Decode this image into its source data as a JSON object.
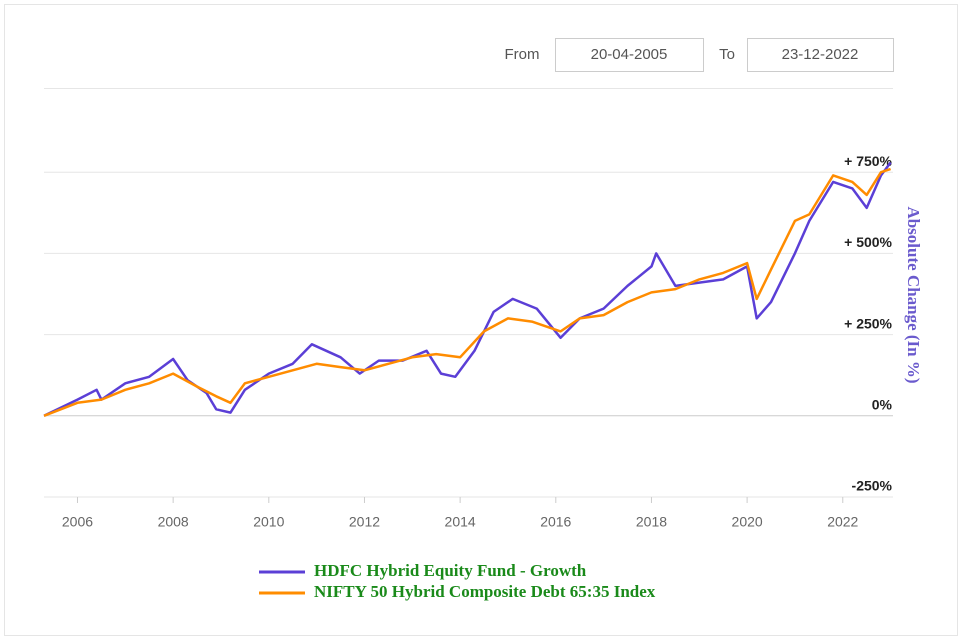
{
  "date_range": {
    "from_label": "From",
    "from": "20-04-2005",
    "to_label": "To",
    "to": "23-12-2022"
  },
  "chart_data": {
    "type": "line",
    "y_axis_label": "Absolute Change (In %)",
    "xlim": [
      2005.3,
      2023.05
    ],
    "xticks": [
      2006,
      2008,
      2010,
      2012,
      2014,
      2016,
      2018,
      2020,
      2022
    ],
    "ylim": [
      -250,
      1000
    ],
    "yticks": [
      {
        "value": -250,
        "label": "-250%"
      },
      {
        "value": 0,
        "label": "0%"
      },
      {
        "value": 250,
        "label": "+ 250%"
      },
      {
        "value": 500,
        "label": "+ 500%"
      },
      {
        "value": 750,
        "label": "+ 750%"
      }
    ],
    "grid": true,
    "legend": "bottom",
    "series": [
      {
        "name": "HDFC Hybrid Equity Fund - Growth",
        "color": "#5b3fd6",
        "x": [
          2005.3,
          2006,
          2006.4,
          2006.5,
          2007,
          2007.5,
          2008,
          2008.3,
          2008.7,
          2008.9,
          2009.2,
          2009.5,
          2010,
          2010.5,
          2010.9,
          2011.5,
          2011.9,
          2012.3,
          2012.8,
          2013.3,
          2013.6,
          2013.9,
          2014.3,
          2014.7,
          2015.1,
          2015.6,
          2016.1,
          2016.5,
          2017,
          2017.5,
          2018,
          2018.1,
          2018.5,
          2019,
          2019.5,
          2020,
          2020.2,
          2020.5,
          2021,
          2021.3,
          2021.8,
          2022.2,
          2022.5,
          2022.8,
          2023
        ],
        "values": [
          0,
          50,
          80,
          50,
          100,
          120,
          175,
          110,
          70,
          20,
          10,
          80,
          130,
          160,
          220,
          180,
          130,
          170,
          170,
          200,
          130,
          120,
          200,
          320,
          360,
          330,
          240,
          300,
          330,
          400,
          460,
          500,
          400,
          410,
          420,
          460,
          300,
          350,
          500,
          600,
          720,
          700,
          640,
          740,
          780
        ]
      },
      {
        "name": "NIFTY 50 Hybrid Composite Debt 65:35 Index",
        "color": "#ff8c00",
        "x": [
          2005.3,
          2006,
          2006.5,
          2007,
          2007.5,
          2008,
          2008.5,
          2008.9,
          2009.2,
          2009.5,
          2010,
          2010.5,
          2011,
          2011.5,
          2012,
          2012.5,
          2013,
          2013.5,
          2014,
          2014.5,
          2015,
          2015.5,
          2016.1,
          2016.5,
          2017,
          2017.5,
          2018,
          2018.5,
          2019,
          2019.5,
          2020,
          2020.2,
          2020.5,
          2021,
          2021.3,
          2021.8,
          2022.2,
          2022.5,
          2022.8,
          2023
        ],
        "values": [
          0,
          40,
          50,
          80,
          100,
          130,
          90,
          60,
          40,
          100,
          120,
          140,
          160,
          150,
          140,
          160,
          180,
          190,
          180,
          260,
          300,
          290,
          260,
          300,
          310,
          350,
          380,
          390,
          420,
          440,
          470,
          360,
          450,
          600,
          620,
          740,
          720,
          680,
          750,
          760
        ]
      }
    ]
  }
}
